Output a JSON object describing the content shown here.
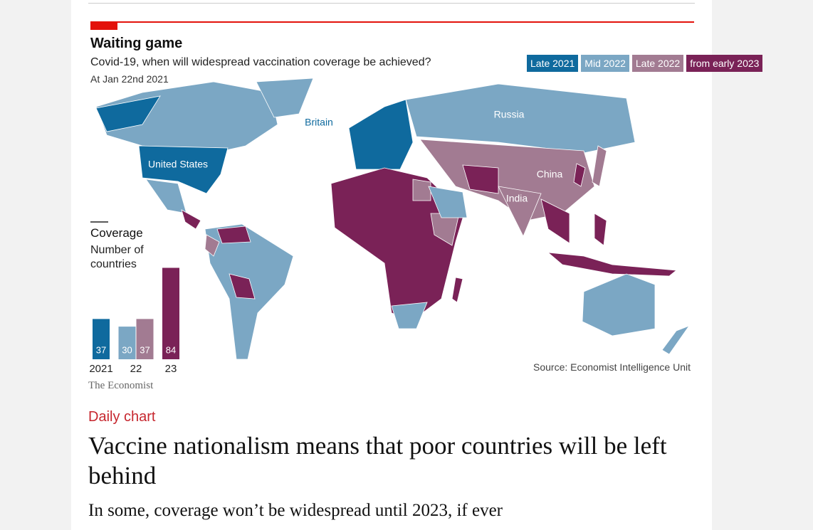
{
  "figure": {
    "title": "Waiting game",
    "subtitle": "Covid-19, when will widespread vaccination coverage be achieved?",
    "date_note": "At Jan 22nd 2021",
    "map_labels": [
      "Britain",
      "United States",
      "Russia",
      "China",
      "India"
    ],
    "source": "Source: Economist Intelligence Unit",
    "brand": "The Economist"
  },
  "chart_data": {
    "type": "bar",
    "title": "Coverage",
    "subtitle": "Number of countries",
    "categories": [
      "2021",
      "22",
      "23"
    ],
    "series": [
      {
        "name": "Late 2021",
        "color": "#0f6a9e",
        "values": [
          37,
          null,
          null
        ]
      },
      {
        "name": "Mid 2022",
        "color": "#7ba7c4",
        "values": [
          null,
          30,
          null
        ]
      },
      {
        "name": "Late 2022",
        "color": "#a27b92",
        "values": [
          null,
          37,
          null
        ]
      },
      {
        "name": "from early 2023",
        "color": "#7a2257",
        "values": [
          null,
          null,
          84
        ]
      }
    ]
  },
  "article": {
    "section": "Daily chart",
    "headline": "Vaccine nationalism means that poor countries will be left behind",
    "subheadline": "In some, coverage won’t be widespread until 2023, if ever"
  }
}
